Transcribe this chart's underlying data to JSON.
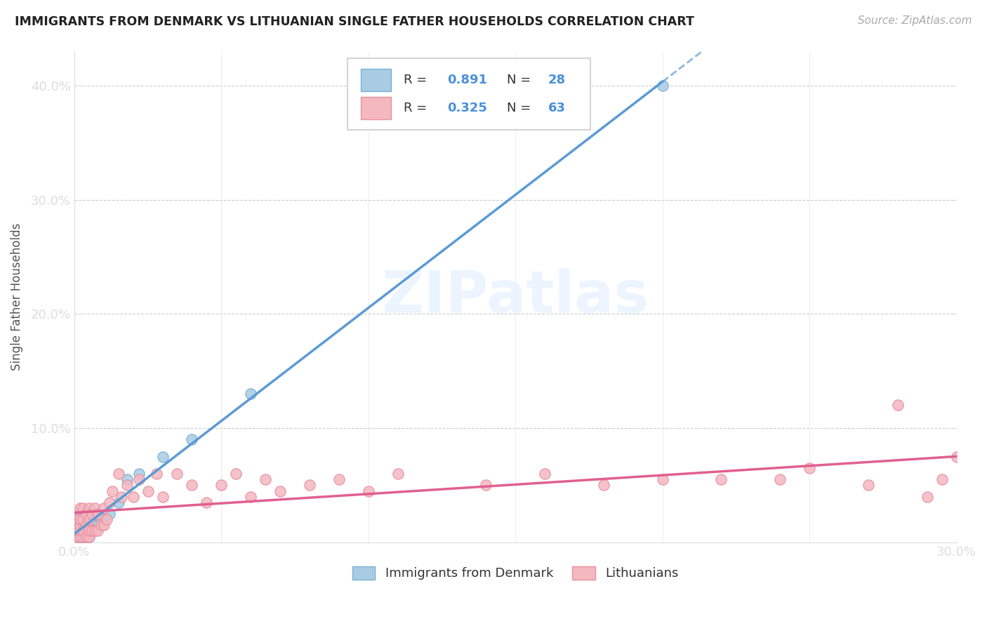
{
  "title": "IMMIGRANTS FROM DENMARK VS LITHUANIAN SINGLE FATHER HOUSEHOLDS CORRELATION CHART",
  "source": "Source: ZipAtlas.com",
  "ylabel_text": "Single Father Households",
  "xlim": [
    0.0,
    0.3
  ],
  "ylim": [
    0.0,
    0.43
  ],
  "x_ticks": [
    0.0,
    0.05,
    0.1,
    0.15,
    0.2,
    0.25,
    0.3
  ],
  "y_ticks": [
    0.0,
    0.1,
    0.2,
    0.3,
    0.4
  ],
  "denmark_color": "#a8cce4",
  "danish_edge_color": "#7bafd4",
  "lithuanian_color": "#f4b8c1",
  "lithuanian_edge_color": "#e8909e",
  "denmark_line_color": "#5b9bd5",
  "lithuanian_line_color": "#e06090",
  "R_denmark": 0.891,
  "N_denmark": 28,
  "R_lithuanian": 0.325,
  "N_lithuanian": 63,
  "watermark": "ZIPatlas",
  "denmark_scatter_x": [
    0.001,
    0.001,
    0.001,
    0.002,
    0.002,
    0.002,
    0.002,
    0.003,
    0.003,
    0.003,
    0.004,
    0.004,
    0.005,
    0.005,
    0.005,
    0.006,
    0.007,
    0.008,
    0.009,
    0.01,
    0.012,
    0.015,
    0.018,
    0.022,
    0.03,
    0.04,
    0.06,
    0.2
  ],
  "denmark_scatter_y": [
    0.005,
    0.01,
    0.015,
    0.005,
    0.01,
    0.02,
    0.025,
    0.005,
    0.015,
    0.025,
    0.005,
    0.02,
    0.005,
    0.015,
    0.025,
    0.01,
    0.015,
    0.015,
    0.02,
    0.02,
    0.025,
    0.035,
    0.055,
    0.06,
    0.075,
    0.09,
    0.13,
    0.4
  ],
  "lithuanian_scatter_x": [
    0.001,
    0.001,
    0.001,
    0.002,
    0.002,
    0.002,
    0.002,
    0.002,
    0.003,
    0.003,
    0.003,
    0.003,
    0.004,
    0.004,
    0.004,
    0.005,
    0.005,
    0.005,
    0.005,
    0.006,
    0.006,
    0.007,
    0.007,
    0.008,
    0.008,
    0.009,
    0.01,
    0.01,
    0.011,
    0.012,
    0.013,
    0.015,
    0.016,
    0.018,
    0.02,
    0.022,
    0.025,
    0.028,
    0.03,
    0.035,
    0.04,
    0.045,
    0.05,
    0.055,
    0.06,
    0.065,
    0.07,
    0.08,
    0.09,
    0.1,
    0.11,
    0.14,
    0.16,
    0.18,
    0.2,
    0.22,
    0.24,
    0.25,
    0.27,
    0.28,
    0.29,
    0.295,
    0.3
  ],
  "lithuanian_scatter_y": [
    0.005,
    0.01,
    0.02,
    0.005,
    0.01,
    0.015,
    0.02,
    0.03,
    0.005,
    0.01,
    0.02,
    0.03,
    0.005,
    0.015,
    0.025,
    0.005,
    0.01,
    0.02,
    0.03,
    0.01,
    0.025,
    0.01,
    0.03,
    0.01,
    0.025,
    0.015,
    0.015,
    0.03,
    0.02,
    0.035,
    0.045,
    0.06,
    0.04,
    0.05,
    0.04,
    0.055,
    0.045,
    0.06,
    0.04,
    0.06,
    0.05,
    0.035,
    0.05,
    0.06,
    0.04,
    0.055,
    0.045,
    0.05,
    0.055,
    0.045,
    0.06,
    0.05,
    0.06,
    0.05,
    0.055,
    0.055,
    0.055,
    0.065,
    0.05,
    0.12,
    0.04,
    0.055,
    0.075
  ],
  "background_color": "#ffffff",
  "grid_color": "#cccccc",
  "title_color": "#222222",
  "tick_color": "#4a90d9",
  "legend_label_color": "#4a90d9"
}
